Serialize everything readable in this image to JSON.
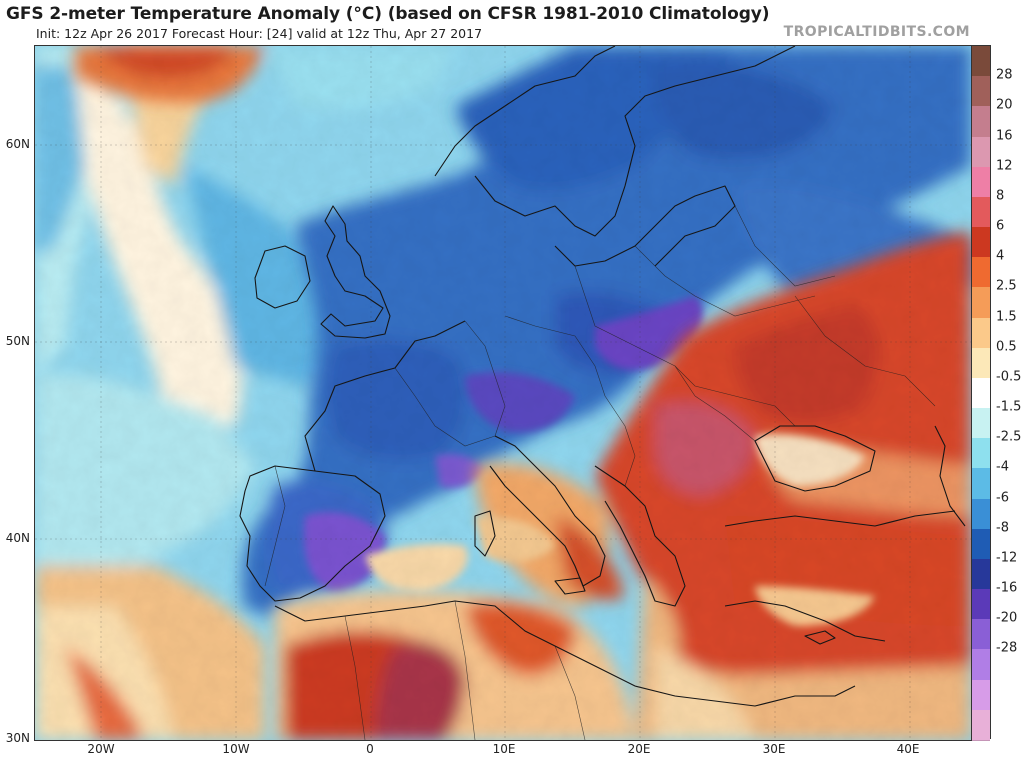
{
  "title": "GFS 2-meter Temperature Anomaly (°C) (based on CFSR 1981-2010 Climatology)",
  "subtitle": "Init: 12z Apr 26 2017   Forecast Hour: [24]   valid at 12z Thu, Apr 27 2017",
  "watermark": "TROPICALTIDBITS.COM",
  "axes": {
    "lat_labels": [
      "60N",
      "50N",
      "40N",
      "30N"
    ],
    "lon_labels": [
      "20W",
      "10W",
      "0",
      "10E",
      "20E",
      "30E",
      "40E"
    ]
  },
  "colorbar": {
    "labels": [
      "28",
      "20",
      "16",
      "12",
      "8",
      "6",
      "4",
      "2.5",
      "1.5",
      "0.5",
      "-0.5",
      "-1.5",
      "-2.5",
      "-4",
      "-6",
      "-8",
      "-12",
      "-16",
      "-20",
      "-28"
    ],
    "colors": [
      "#7a4a3a",
      "#a0605a",
      "#c47e8e",
      "#dc98b0",
      "#ee7fa6",
      "#e35a5c",
      "#cc3820",
      "#ef6a30",
      "#f59c58",
      "#fbc98a",
      "#fce8b8",
      "#ffffff",
      "#c8f2f2",
      "#8ee0ee",
      "#5cbbe6",
      "#3a8fd6",
      "#1f5cb4",
      "#27389a",
      "#5b3ab8",
      "#8a5fd6",
      "#b07ee6",
      "#d79ce8",
      "#e8b0d8"
    ]
  },
  "colors": {
    "ocean_base": "#7cc8e8",
    "cold_core": "#2650b0",
    "very_cold": "#6a48c8",
    "warm_core": "#d8422a",
    "hot_core": "#b43040",
    "mild": "#f8c890"
  }
}
